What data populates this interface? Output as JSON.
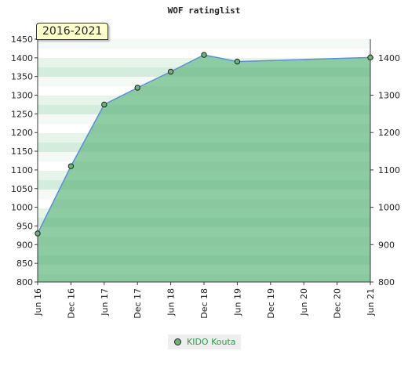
{
  "chart_data": {
    "type": "area",
    "title": "WOF ratinglist",
    "range_label": "2016-2021",
    "x_ticks": [
      "Jun 16",
      "Dec 16",
      "Jun 17",
      "Dec 17",
      "Jun 18",
      "Dec 18",
      "Jun 19",
      "Dec 19",
      "Jun 20",
      "Dec 20",
      "Jun 21"
    ],
    "y_left_ticks": [
      800,
      850,
      900,
      950,
      1000,
      1050,
      1100,
      1150,
      1200,
      1250,
      1300,
      1350,
      1400,
      1450
    ],
    "y_right_ticks": [
      800,
      900,
      1000,
      1100,
      1200,
      1300,
      1400
    ],
    "ylim": [
      800,
      1450
    ],
    "series": [
      {
        "name": "KIDO Kouta",
        "x": [
          "Jun 16",
          "Dec 16",
          "Jun 17",
          "Dec 17",
          "Jun 18",
          "Dec 18",
          "Jun 19",
          "Jun 21"
        ],
        "values": [
          930,
          1110,
          1275,
          1320,
          1363,
          1408,
          1390,
          1401
        ]
      }
    ],
    "legend_position": "bottom-center",
    "colors": {
      "fill": "#7dc496",
      "line": "#5b8fd8",
      "marker": "#6ab47a"
    }
  }
}
